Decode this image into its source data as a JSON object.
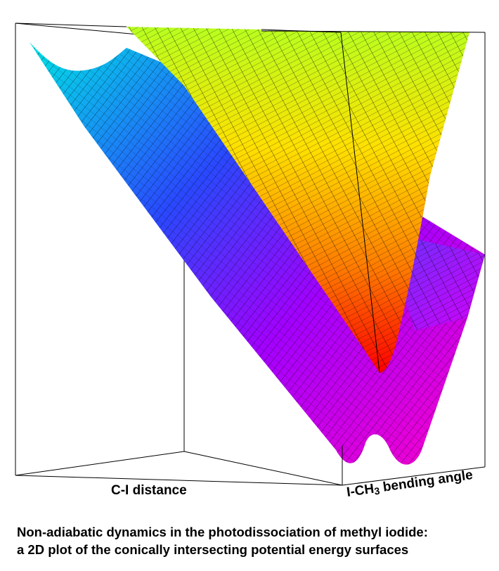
{
  "figure": {
    "x_axis_label": "C-I distance",
    "y_axis_label_prefix": "I-CH",
    "y_axis_label_subscript": "3",
    "y_axis_label_suffix": " bending angle",
    "caption_line1": "Non-adiabatic dynamics in the photodissociation of methyl iodide:",
    "caption_line2": "a 2D plot of the conically intersecting potential energy surfaces",
    "surfaces": [
      {
        "role": "lower surface",
        "gradient": [
          "#00e5e5",
          "#3b2cff",
          "#c000ff",
          "#ff00cc"
        ]
      },
      {
        "role": "upper cone",
        "gradient": [
          "#b8ff20",
          "#ffd000",
          "#ff7a00",
          "#ff0000"
        ]
      }
    ],
    "grid_line_color": "#000000"
  }
}
